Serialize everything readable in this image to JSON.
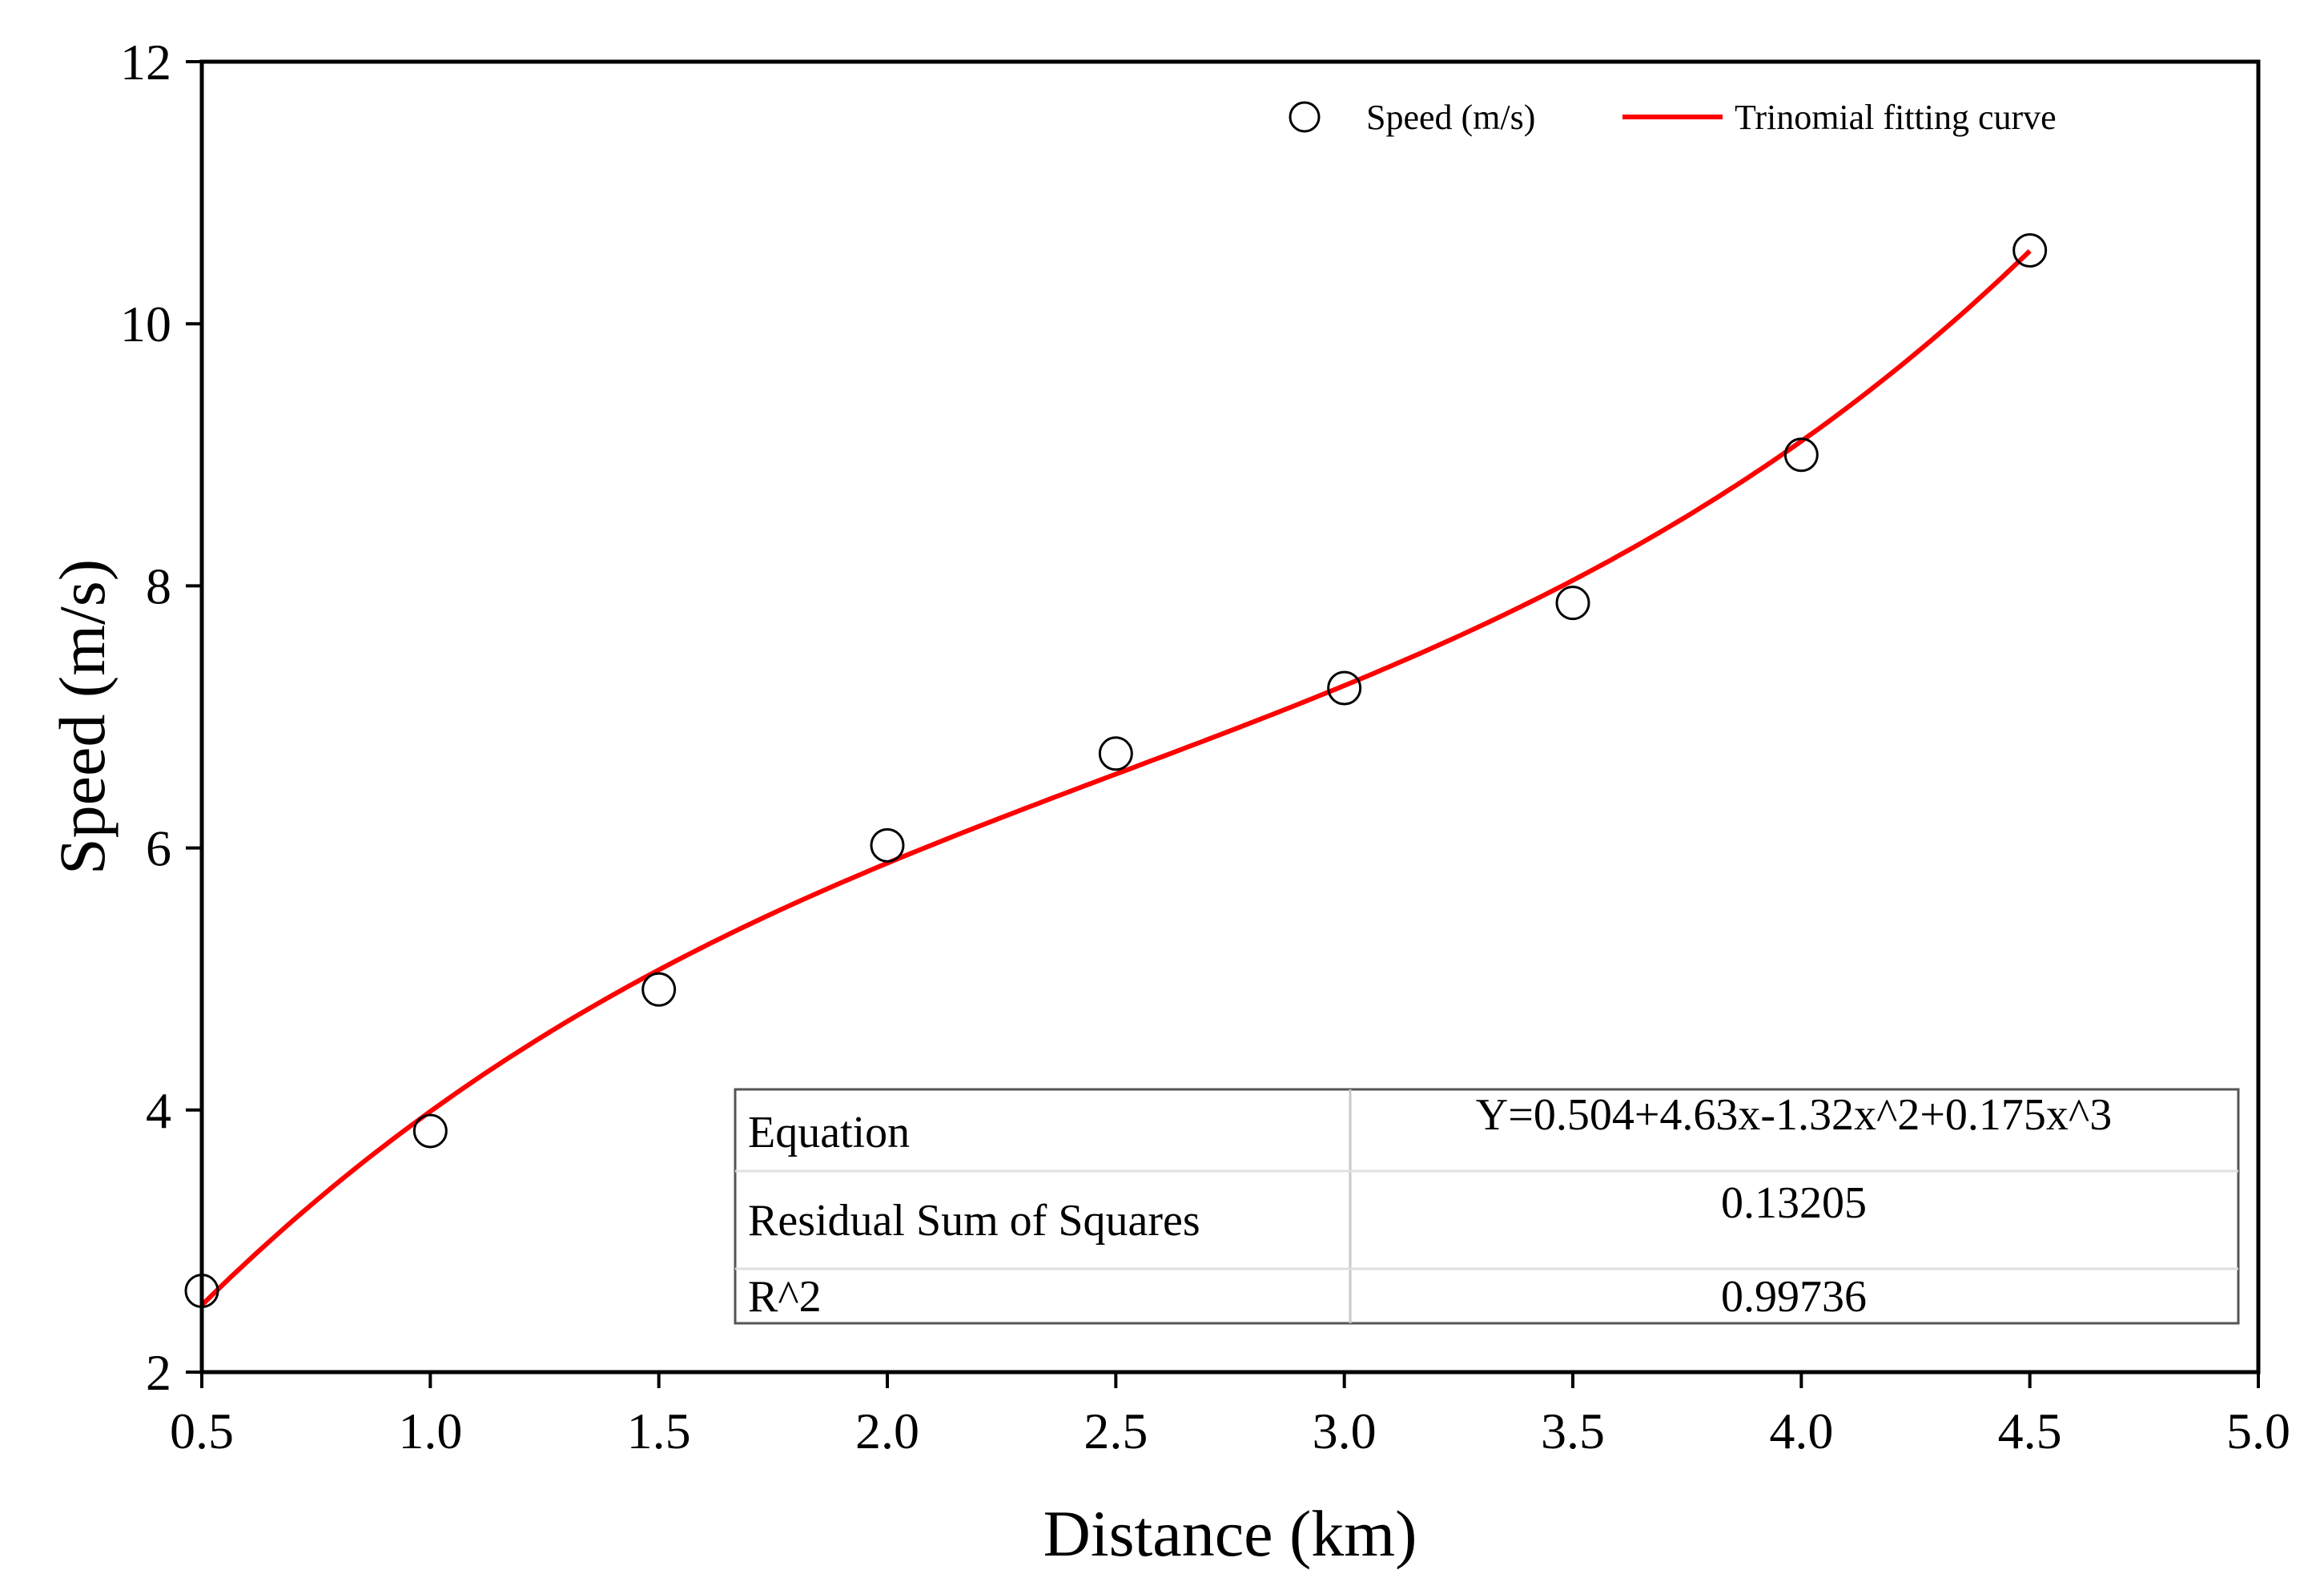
{
  "chart_data": {
    "type": "scatter",
    "title": "",
    "xlabel": "Distance (km)",
    "ylabel": "Speed (m/s)",
    "xlim": [
      0.5,
      5.0
    ],
    "ylim": [
      2,
      12
    ],
    "xticks": [
      "0.5",
      "1.0",
      "1.5",
      "2.0",
      "2.5",
      "3.0",
      "3.5",
      "4.0",
      "4.5",
      "5.0"
    ],
    "yticks": [
      "2",
      "4",
      "6",
      "8",
      "10",
      "12"
    ],
    "grid": false,
    "legend_position": "top-right",
    "series": [
      {
        "name": "Speed (m/s)",
        "kind": "scatter",
        "marker": "open-circle",
        "x": [
          0.5,
          1.0,
          1.5,
          2.0,
          2.5,
          3.0,
          3.5,
          4.0,
          4.5
        ],
        "y": [
          2.62,
          3.84,
          4.92,
          6.02,
          6.72,
          7.22,
          7.87,
          9.0,
          10.56
        ]
      },
      {
        "name": "Trinomial fitting curve",
        "kind": "line",
        "color": "#ff0000",
        "x_range": [
          0.5,
          4.5
        ],
        "coefficients": [
          0.504,
          4.63,
          -1.32,
          0.175
        ]
      }
    ],
    "fit_table": {
      "rows": [
        {
          "label": "Equation",
          "value": "Y=0.504+4.63x-1.32x^2+0.175x^3"
        },
        {
          "label": "Residual Sum of Squares",
          "value": "0.13205"
        },
        {
          "label": "R^2",
          "value": "0.99736"
        }
      ]
    }
  }
}
